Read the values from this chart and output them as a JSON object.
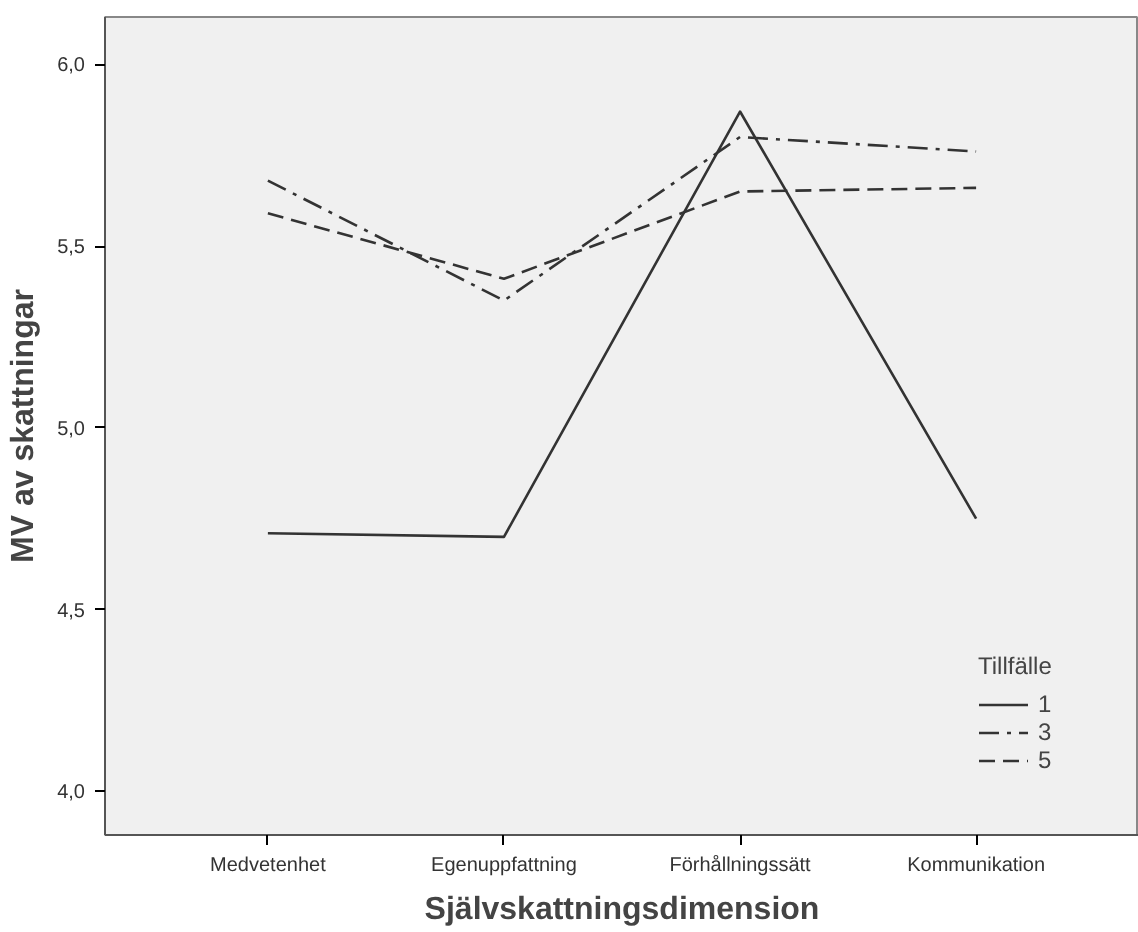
{
  "chart_data": {
    "type": "line",
    "xlabel": "Självskattningsdimension",
    "ylabel": "MV av skattningar",
    "legend_title": "Tillfälle",
    "categories": [
      "Medvetenhet",
      "Egenuppfattning",
      "Förhållningssätt",
      "Kommunikation"
    ],
    "series": [
      {
        "name": "1",
        "color": "#333333",
        "line_style": "solid",
        "values": [
          4.71,
          4.7,
          5.87,
          4.75
        ]
      },
      {
        "name": "3",
        "color": "#333333",
        "line_style": "dashdot",
        "values": [
          5.68,
          5.35,
          5.8,
          5.76
        ]
      },
      {
        "name": "5",
        "color": "#333333",
        "line_style": "dashed",
        "values": [
          5.59,
          5.41,
          5.65,
          5.66
        ]
      }
    ],
    "ylim": [
      3.88,
      6.13
    ],
    "yticks": [
      {
        "value": 4.0,
        "label": "4,0"
      },
      {
        "value": 4.5,
        "label": "4,5"
      },
      {
        "value": 5.0,
        "label": "5,0"
      },
      {
        "value": 5.5,
        "label": "5,5"
      },
      {
        "value": 6.0,
        "label": "6,0"
      }
    ],
    "grid": false,
    "legend": "bottom right",
    "marker": "none"
  }
}
